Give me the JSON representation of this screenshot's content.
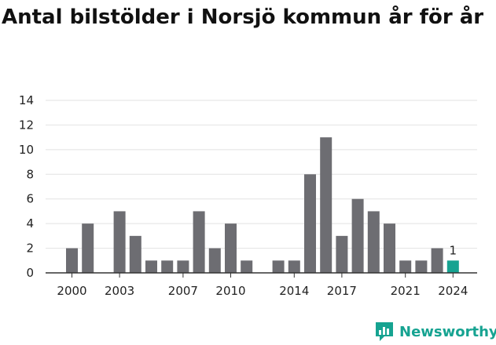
{
  "chart_data": {
    "type": "bar",
    "title": "Antal bilstölder i Norsjö kommun år för år",
    "x": [
      2000,
      2001,
      2002,
      2003,
      2004,
      2005,
      2006,
      2007,
      2008,
      2009,
      2010,
      2011,
      2012,
      2013,
      2014,
      2015,
      2016,
      2017,
      2018,
      2019,
      2020,
      2021,
      2022,
      2023,
      2024
    ],
    "values": [
      2,
      4,
      0,
      5,
      3,
      1,
      1,
      1,
      5,
      2,
      4,
      1,
      0,
      1,
      1,
      8,
      11,
      3,
      6,
      5,
      4,
      1,
      1,
      2,
      1
    ],
    "x_tick_labels": [
      "2000",
      "2003",
      "2007",
      "2010",
      "2014",
      "2017",
      "2021",
      "2024"
    ],
    "y_ticks": [
      0,
      2,
      4,
      6,
      8,
      10,
      12,
      14
    ],
    "ylim": [
      0,
      14
    ],
    "highlight": {
      "x": 2024,
      "label": "1"
    },
    "grid": true,
    "legend": "none",
    "xlabel": "",
    "ylabel": "",
    "colors": {
      "bar": "#6d6d72",
      "highlight": "#16a391",
      "grid": "#e2e2e2",
      "axis": "#333333"
    }
  },
  "brand": {
    "name": "Newsworthy",
    "logo_icon": "newsworthy-chart-icon"
  }
}
